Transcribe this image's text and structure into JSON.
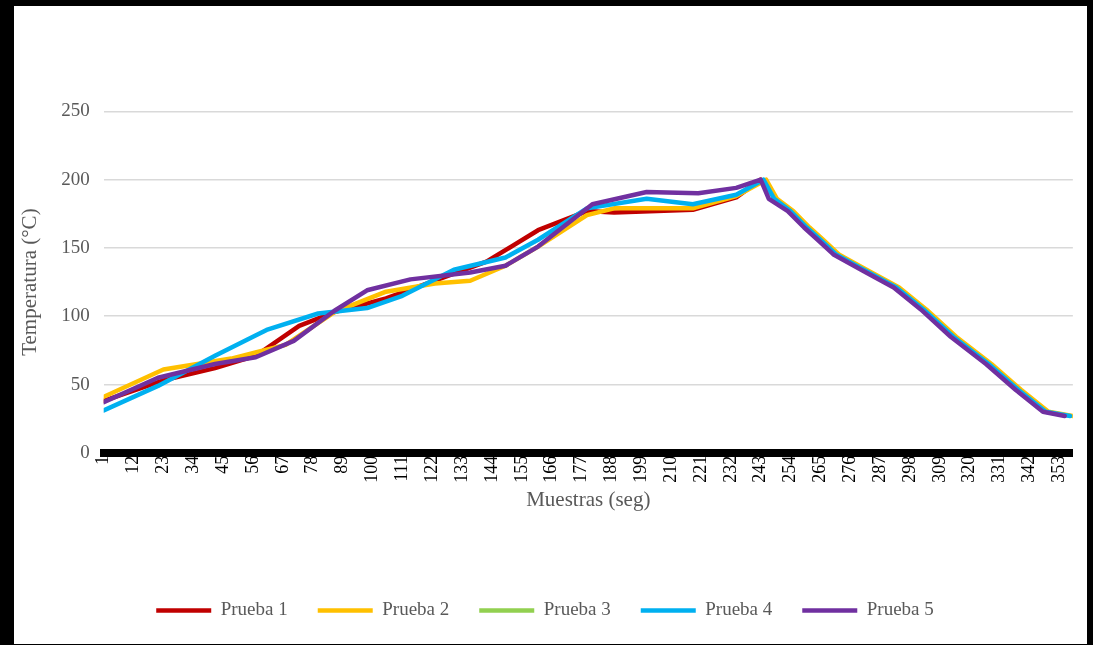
{
  "chart_data": {
    "type": "line",
    "xlabel": "Muestras (seg)",
    "ylabel": "Temperatura (°C)",
    "xlim": [
      1,
      358
    ],
    "xticks": [
      1,
      12,
      23,
      34,
      45,
      56,
      67,
      78,
      89,
      100,
      111,
      122,
      133,
      144,
      155,
      166,
      177,
      188,
      199,
      210,
      221,
      232,
      243,
      254,
      265,
      276,
      287,
      298,
      309,
      320,
      331,
      342,
      353
    ],
    "ylim": [
      0,
      250
    ],
    "yticks": [
      0,
      50,
      100,
      150,
      200,
      250
    ],
    "grid": "y",
    "legend": "bottom",
    "marker": "none",
    "line_style": "solid",
    "series": [
      {
        "name": "Prueba 1",
        "color": "#c00000",
        "x": [
          1,
          23,
          42,
          57,
          73,
          86,
          105,
          123,
          142,
          161,
          179,
          189,
          218,
          234,
          243
        ],
        "values": [
          38,
          53,
          62,
          71,
          93,
          103,
          113,
          126,
          140,
          163,
          177,
          176,
          178,
          187,
          200
        ]
      },
      {
        "name": "Prueba 2",
        "color": "#ffc000",
        "x": [
          1,
          23,
          48,
          68,
          86,
          105,
          123,
          136,
          149,
          161,
          179,
          189,
          218,
          234,
          245,
          249,
          255,
          261,
          266,
          272,
          283,
          294,
          304,
          315,
          328,
          339,
          349,
          358
        ],
        "values": [
          41,
          61,
          69,
          79,
          103,
          118,
          124,
          126,
          137,
          151,
          174,
          179,
          179,
          188,
          200,
          186,
          177,
          165,
          156,
          145,
          133,
          121,
          105,
          85,
          65,
          46,
          30,
          27
        ]
      },
      {
        "name": "Prueba 3",
        "color": "#92d050"
      },
      {
        "name": "Prueba 4",
        "color": "#00b0f0",
        "x": [
          1,
          21,
          42,
          61,
          80,
          98,
          111,
          130,
          149,
          161,
          179,
          201,
          218,
          234,
          244,
          248,
          254,
          260,
          265,
          271,
          282,
          293,
          303,
          314,
          327,
          338,
          348,
          357
        ],
        "values": [
          31,
          49,
          71,
          90,
          102,
          106,
          115,
          134,
          143,
          156,
          179,
          186,
          182,
          189,
          200,
          186,
          177,
          165,
          156,
          145,
          133,
          121,
          105,
          85,
          65,
          46,
          30,
          27
        ]
      },
      {
        "name": "Prueba 5",
        "color": "#7030a0",
        "x": [
          1,
          21,
          42,
          57,
          71,
          86,
          98,
          114,
          136,
          149,
          161,
          181,
          201,
          220,
          234,
          243,
          246,
          253,
          259,
          264,
          270,
          281,
          292,
          302,
          313,
          326,
          337,
          347,
          355
        ],
        "values": [
          37,
          55,
          65,
          70,
          82,
          104,
          119,
          127,
          132,
          137,
          151,
          182,
          191,
          190,
          194,
          200,
          186,
          177,
          165,
          156,
          145,
          133,
          121,
          105,
          85,
          65,
          46,
          30,
          27
        ]
      }
    ]
  }
}
